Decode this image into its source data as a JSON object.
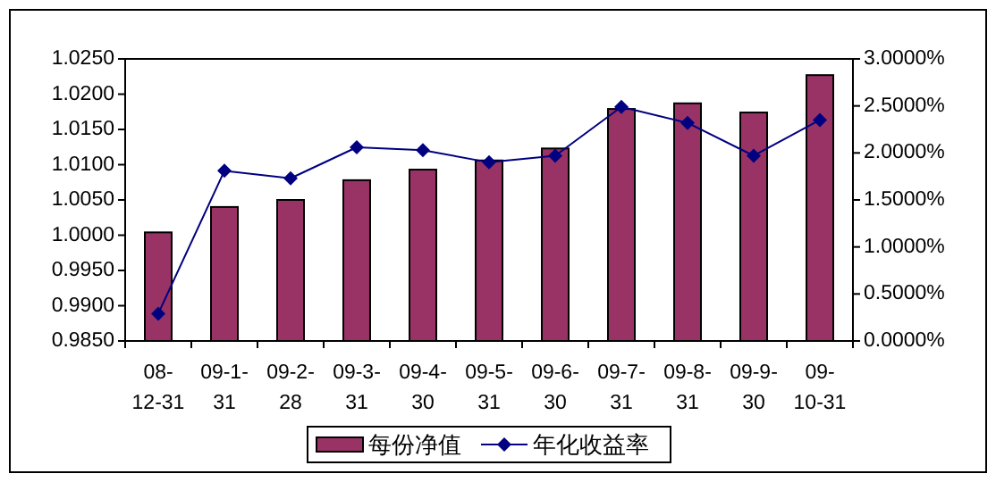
{
  "chart_data": {
    "type": "bar",
    "categories": [
      "08-12-31",
      "09-1-31",
      "09-2-28",
      "09-3-31",
      "09-4-30",
      "09-5-31",
      "09-6-30",
      "09-7-31",
      "09-8-31",
      "09-9-30",
      "09-10-31"
    ],
    "series": [
      {
        "name": "每份净值",
        "color": "#993366",
        "values": [
          1.0004,
          1.004,
          1.005,
          1.0078,
          1.0093,
          1.0106,
          1.0123,
          1.0179,
          1.0187,
          1.0174,
          1.0227
        ]
      },
      {
        "name": "年化收益率",
        "type": "line",
        "axis": "y2",
        "color": "#000080",
        "marker": "diamond",
        "values": [
          0.29,
          1.81,
          1.73,
          2.06,
          2.03,
          1.9,
          1.97,
          2.49,
          2.32,
          1.97,
          2.35
        ]
      }
    ],
    "ylim": [
      0.985,
      1.025
    ],
    "yticks": [
      {
        "value": 0.985,
        "label": "0.9850"
      },
      {
        "value": 0.99,
        "label": "0.9900"
      },
      {
        "value": 0.995,
        "label": "0.9950"
      },
      {
        "value": 1.0,
        "label": "1.0000"
      },
      {
        "value": 1.005,
        "label": "1.0050"
      },
      {
        "value": 1.01,
        "label": "1.0100"
      },
      {
        "value": 1.015,
        "label": "1.0150"
      },
      {
        "value": 1.02,
        "label": "1.0200"
      },
      {
        "value": 1.025,
        "label": "1.0250"
      }
    ],
    "y2lim": [
      0,
      3
    ],
    "y2ticks": [
      {
        "value": 0,
        "label": "0.0000%"
      },
      {
        "value": 0.5,
        "label": "0.5000%"
      },
      {
        "value": 1,
        "label": "1.0000%"
      },
      {
        "value": 1.5,
        "label": "1.5000%"
      },
      {
        "value": 2,
        "label": "2.0000%"
      },
      {
        "value": 2.5,
        "label": "2.5000%"
      },
      {
        "value": 3,
        "label": "3.0000%"
      }
    ],
    "legend": "bottom"
  }
}
